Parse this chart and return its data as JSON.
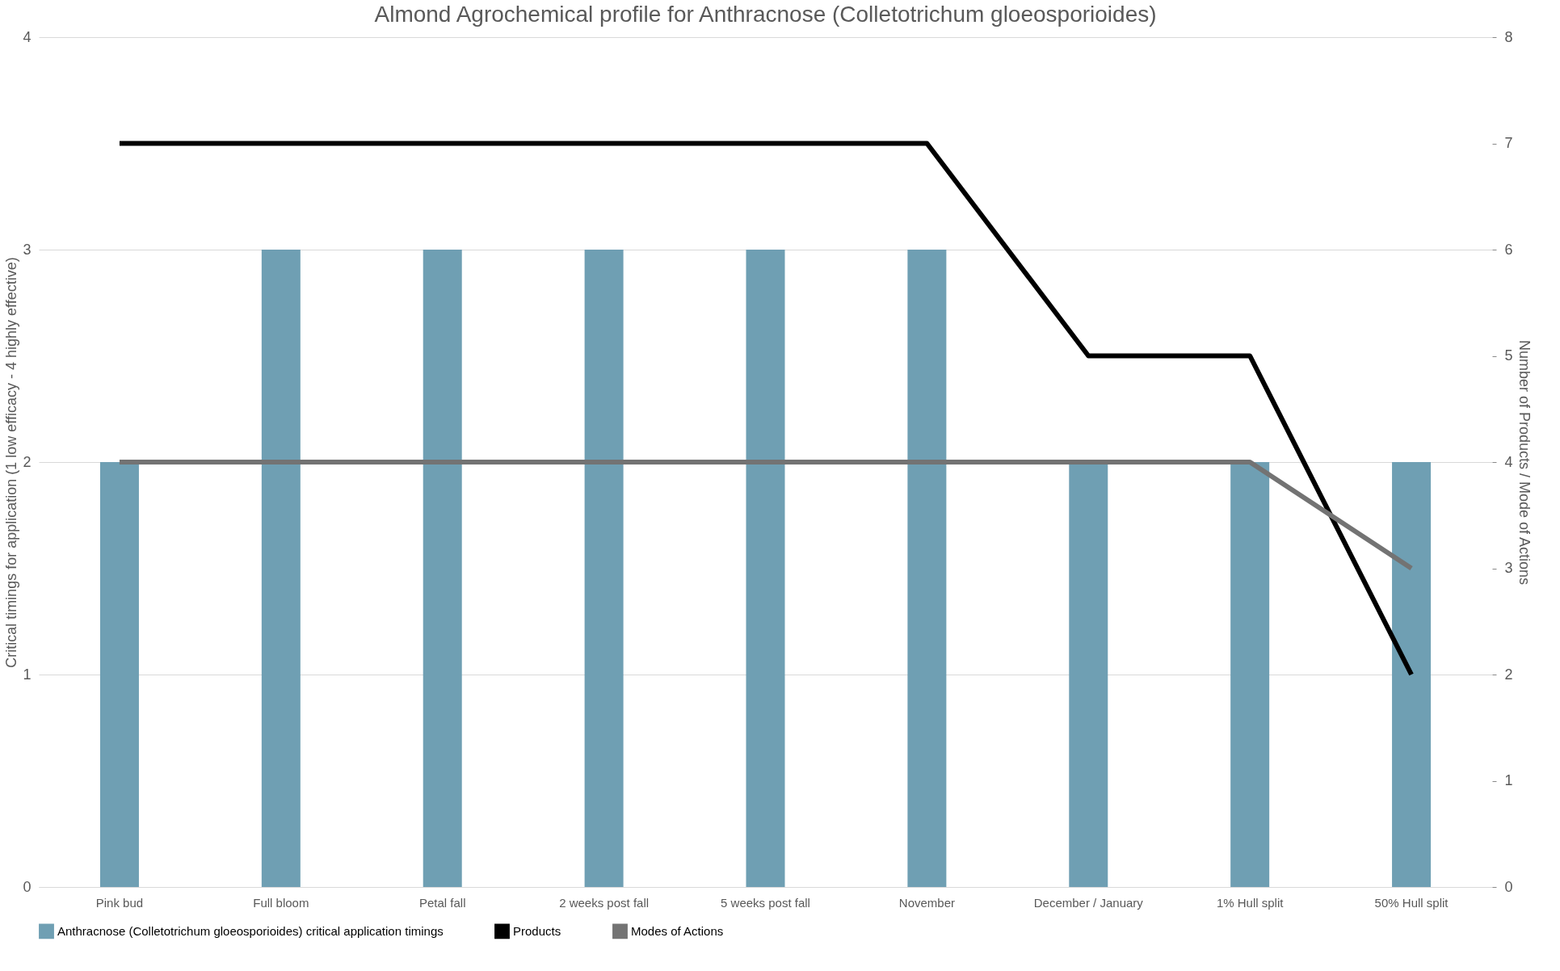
{
  "chart_data": {
    "type": "bar",
    "title": "Almond Agrochemical profile for Anthracnose (Colletotrichum gloeosporioides)",
    "categories": [
      "Pink bud",
      "Full bloom",
      "Petal fall",
      "2 weeks post fall",
      "5 weeks post fall",
      "November",
      "December / January",
      "1% Hull split",
      "50% Hull split"
    ],
    "ylabel": "Critical timings for application (1 low efficacy - 4 highly effective)",
    "y2label": "Number of Products / Mode of Actions",
    "series": [
      {
        "name": "Anthracnose (Colletotrichum gloeosporioides) critical application timings",
        "color": "#6f9fb3",
        "values": [
          2,
          3,
          3,
          3,
          3,
          3,
          2,
          2,
          2
        ]
      },
      {
        "name": "Products",
        "type": "line",
        "axis": "y2",
        "color": "#000000",
        "values": [
          7,
          7,
          7,
          7,
          7,
          7,
          5,
          5,
          2
        ]
      },
      {
        "name": "Modes of Actions",
        "type": "line",
        "axis": "y2",
        "color": "#737373",
        "values": [
          4,
          4,
          4,
          4,
          4,
          4,
          4,
          4,
          3
        ]
      }
    ],
    "ylim": [
      0,
      4
    ],
    "yticks": [
      0,
      1,
      2,
      3,
      4
    ],
    "y2lim": [
      0,
      8
    ],
    "y2ticks": [
      0,
      1,
      2,
      3,
      4,
      5,
      6,
      7,
      8
    ],
    "grid": "y",
    "legend": "bottom",
    "marker": "none",
    "line_style": "solid"
  }
}
